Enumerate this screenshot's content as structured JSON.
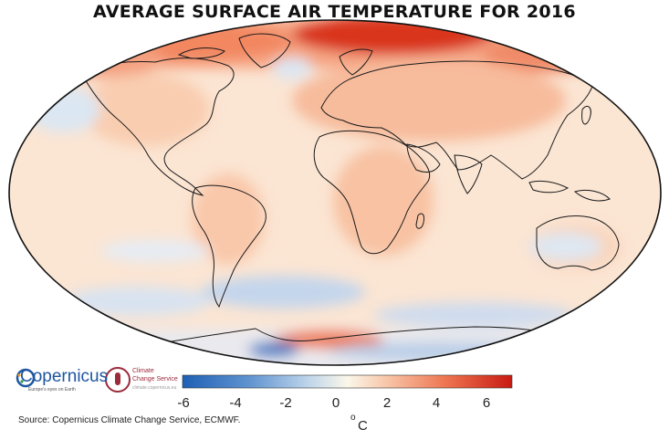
{
  "title": "AVERAGE SURFACE AIR TEMPERATURE FOR 2016",
  "source": "Source: Copernicus Climate Change Service, ECMWF.",
  "logos": {
    "copernicus": {
      "word": "Copernicus",
      "tagline": "Europe's eyes on Earth"
    },
    "c3s": {
      "line1": "Climate",
      "line2": "Change Service",
      "url": "climate.copernicus.eu"
    }
  },
  "colorbar": {
    "ticks": [
      "-6",
      "-4",
      "-2",
      "0",
      "2",
      "4",
      "6"
    ],
    "min": -7,
    "max": 7,
    "unit_sup": "o",
    "unit": "C",
    "colors": {
      "cold": "#1f5fb4",
      "neutral": "#fbf7ea",
      "warm": "#c81a12"
    }
  }
}
